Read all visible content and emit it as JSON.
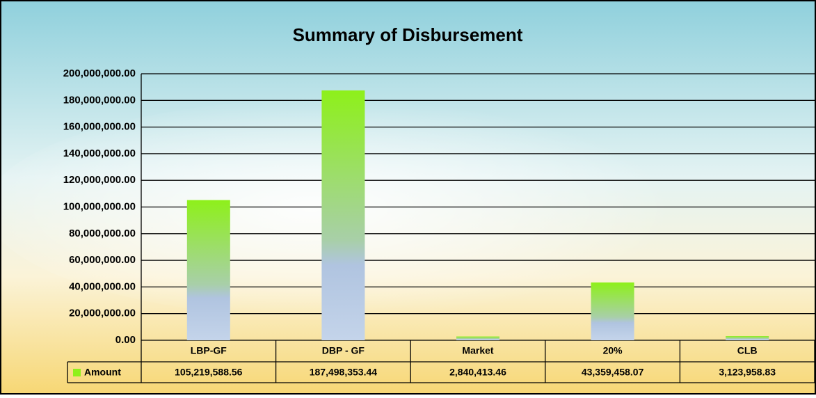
{
  "chart_data": {
    "type": "bar",
    "title": "Summary of Disbursement",
    "categories": [
      "LBP-GF",
      "DBP - GF",
      "Market",
      "20%",
      "CLB"
    ],
    "series": [
      {
        "name": "Amount",
        "color": "#8ef01a",
        "values": [
          105219588.56,
          187498353.44,
          2840413.46,
          43359458.07,
          3123958.83
        ],
        "value_labels": [
          "105,219,588.56",
          "187,498,353.44",
          "2,840,413.46",
          "43,359,458.07",
          "3,123,958.83"
        ]
      }
    ],
    "ylim": [
      0,
      200000000
    ],
    "yticks": [
      {
        "value": 0,
        "label": "0.00"
      },
      {
        "value": 20000000,
        "label": "20,000,000.00"
      },
      {
        "value": 40000000,
        "label": "40,000,000.00"
      },
      {
        "value": 60000000,
        "label": "60,000,000.00"
      },
      {
        "value": 80000000,
        "label": "80,000,000.00"
      },
      {
        "value": 100000000,
        "label": "100,000,000.00"
      },
      {
        "value": 120000000,
        "label": "120,000,000.00"
      },
      {
        "value": 140000000,
        "label": "140,000,000.00"
      },
      {
        "value": 160000000,
        "label": "160,000,000.00"
      },
      {
        "value": 180000000,
        "label": "180,000,000.00"
      },
      {
        "value": 200000000,
        "label": "200,000,000.00"
      }
    ],
    "grid": true
  }
}
